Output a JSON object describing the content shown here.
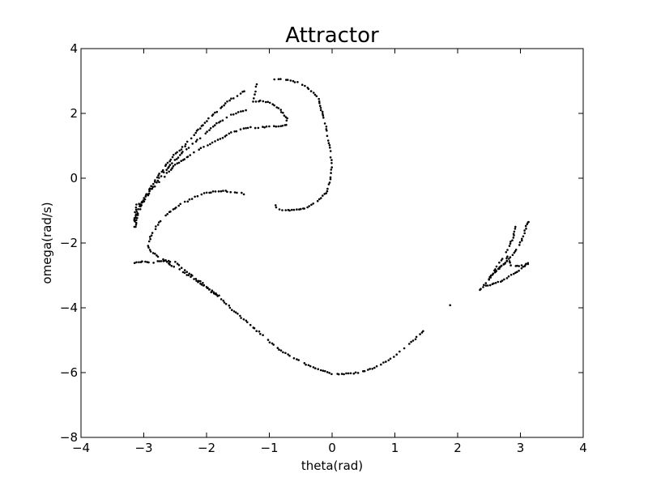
{
  "chart_data": {
    "type": "scatter",
    "title": "Attractor",
    "xlabel": "theta(rad)",
    "ylabel": "omega(rad/s)",
    "xlim": [
      -4,
      4
    ],
    "ylim": [
      -8,
      4
    ],
    "xticks": [
      -4,
      -3,
      -2,
      -1,
      0,
      1,
      2,
      3,
      4
    ],
    "yticks": [
      -8,
      -6,
      -4,
      -2,
      0,
      2,
      4
    ],
    "xtick_labels": [
      "−4",
      "−3",
      "−2",
      "−1",
      "0",
      "1",
      "2",
      "3",
      "4"
    ],
    "ytick_labels": [
      "−8",
      "−6",
      "−4",
      "−2",
      "0",
      "2",
      "4"
    ],
    "grid": false,
    "legend": "none",
    "marker_color": "#000000",
    "curves": [
      [
        [
          -0.9,
          -0.85
        ],
        [
          -0.88,
          -0.95
        ],
        [
          -0.8,
          -0.98
        ],
        [
          -0.7,
          -0.98
        ],
        [
          -0.6,
          -0.98
        ],
        [
          -0.5,
          -0.96
        ],
        [
          -0.4,
          -0.9
        ],
        [
          -0.3,
          -0.8
        ],
        [
          -0.2,
          -0.65
        ],
        [
          -0.1,
          -0.45
        ],
        [
          -0.05,
          -0.2
        ],
        [
          -0.02,
          0.1
        ],
        [
          -0.01,
          0.4
        ],
        [
          -0.02,
          0.7
        ],
        [
          -0.04,
          1.0
        ],
        [
          -0.07,
          1.3
        ],
        [
          -0.1,
          1.6
        ],
        [
          -0.13,
          1.85
        ],
        [
          -0.16,
          2.05
        ],
        [
          -0.19,
          2.25
        ],
        [
          -0.22,
          2.45
        ],
        [
          -0.3,
          2.65
        ],
        [
          -0.4,
          2.8
        ],
        [
          -0.55,
          2.95
        ],
        [
          -0.7,
          3.03
        ],
        [
          -0.82,
          3.05
        ],
        [
          -0.92,
          3.05
        ]
      ],
      [
        [
          -0.85,
          1.6
        ],
        [
          -0.75,
          1.62
        ],
        [
          -0.72,
          1.7
        ],
        [
          -0.72,
          1.85
        ],
        [
          -0.78,
          2.0
        ],
        [
          -0.85,
          2.15
        ],
        [
          -0.95,
          2.3
        ],
        [
          -1.1,
          2.38
        ],
        [
          -1.25,
          2.38
        ],
        [
          -1.2,
          2.9
        ]
      ],
      [
        [
          -0.85,
          1.6
        ],
        [
          -1.0,
          1.58
        ],
        [
          -1.15,
          1.57
        ],
        [
          -1.3,
          1.56
        ],
        [
          -1.45,
          1.5
        ],
        [
          -1.6,
          1.4
        ],
        [
          -1.75,
          1.25
        ],
        [
          -1.9,
          1.1
        ],
        [
          -2.05,
          0.95
        ],
        [
          -2.2,
          0.8
        ],
        [
          -2.35,
          0.6
        ],
        [
          -2.5,
          0.4
        ],
        [
          -2.6,
          0.2
        ],
        [
          -2.7,
          0.0
        ],
        [
          -2.8,
          -0.2
        ],
        [
          -2.9,
          -0.4
        ],
        [
          -3.0,
          -0.7
        ],
        [
          -3.08,
          -1.0
        ],
        [
          -3.12,
          -1.3
        ],
        [
          -3.13,
          -1.5
        ]
      ],
      [
        [
          -1.35,
          2.1
        ],
        [
          -1.45,
          2.05
        ],
        [
          -1.6,
          1.95
        ],
        [
          -1.75,
          1.8
        ],
        [
          -1.9,
          1.6
        ],
        [
          -2.05,
          1.35
        ],
        [
          -2.2,
          1.1
        ],
        [
          -2.35,
          0.85
        ],
        [
          -2.5,
          0.55
        ],
        [
          -2.62,
          0.3
        ],
        [
          -2.75,
          0.0
        ],
        [
          -2.85,
          -0.25
        ],
        [
          -2.95,
          -0.5
        ],
        [
          -3.05,
          -0.8
        ],
        [
          -3.12,
          -1.1
        ],
        [
          -3.15,
          -1.3
        ]
      ],
      [
        [
          -1.4,
          2.7
        ],
        [
          -1.5,
          2.55
        ],
        [
          -1.6,
          2.45
        ],
        [
          -1.7,
          2.3
        ],
        [
          -1.8,
          2.1
        ],
        [
          -1.92,
          1.95
        ],
        [
          -2.05,
          1.65
        ],
        [
          -2.2,
          1.35
        ],
        [
          -2.35,
          1.0
        ],
        [
          -2.55,
          0.65
        ],
        [
          -2.7,
          0.25
        ],
        [
          -2.9,
          -0.3
        ],
        [
          -3.05,
          -0.8
        ],
        [
          -3.12,
          -0.75
        ],
        [
          -3.15,
          -1.5
        ]
      ],
      [
        [
          -1.4,
          -0.48
        ],
        [
          -1.55,
          -0.42
        ],
        [
          -1.7,
          -0.4
        ],
        [
          -1.85,
          -0.4
        ],
        [
          -2.0,
          -0.45
        ],
        [
          -2.15,
          -0.55
        ],
        [
          -2.3,
          -0.7
        ],
        [
          -2.45,
          -0.85
        ],
        [
          -2.6,
          -1.05
        ],
        [
          -2.7,
          -1.25
        ],
        [
          -2.8,
          -1.5
        ],
        [
          -2.88,
          -1.75
        ],
        [
          -2.93,
          -2.0
        ],
        [
          -2.93,
          -2.15
        ],
        [
          -2.88,
          -2.25
        ],
        [
          -2.8,
          -2.4
        ],
        [
          -2.7,
          -2.5
        ],
        [
          -2.55,
          -2.7
        ],
        [
          -2.4,
          -2.85
        ],
        [
          -2.25,
          -3.05
        ],
        [
          -2.1,
          -3.25
        ],
        [
          -1.95,
          -3.45
        ],
        [
          -1.8,
          -3.7
        ],
        [
          -1.65,
          -3.95
        ],
        [
          -1.5,
          -4.2
        ],
        [
          -1.35,
          -4.45
        ],
        [
          -1.2,
          -4.7
        ],
        [
          -1.05,
          -4.95
        ],
        [
          -0.9,
          -5.2
        ],
        [
          -0.75,
          -5.4
        ],
        [
          -0.6,
          -5.55
        ],
        [
          -0.45,
          -5.7
        ],
        [
          -0.3,
          -5.85
        ],
        [
          -0.15,
          -5.95
        ],
        [
          0.0,
          -6.03
        ],
        [
          0.15,
          -6.05
        ],
        [
          0.3,
          -6.03
        ],
        [
          0.45,
          -6.0
        ],
        [
          0.6,
          -5.9
        ],
        [
          0.75,
          -5.78
        ],
        [
          0.9,
          -5.62
        ],
        [
          1.05,
          -5.42
        ],
        [
          1.2,
          -5.15
        ],
        [
          1.35,
          -4.9
        ],
        [
          1.45,
          -4.72
        ]
      ],
      [
        [
          -3.15,
          -2.6
        ],
        [
          -3.05,
          -2.58
        ],
        [
          -2.95,
          -2.58
        ],
        [
          -2.85,
          -2.6
        ],
        [
          -2.75,
          -2.55
        ],
        [
          -2.65,
          -2.55
        ],
        [
          -2.5,
          -2.6
        ],
        [
          -2.4,
          -2.75
        ],
        [
          -2.25,
          -2.98
        ],
        [
          -2.1,
          -3.2
        ],
        [
          -1.95,
          -3.42
        ],
        [
          -1.8,
          -3.62
        ]
      ],
      [
        [
          1.88,
          -3.92
        ]
      ],
      [
        [
          2.35,
          -3.45
        ],
        [
          2.45,
          -3.25
        ],
        [
          2.52,
          -3.05
        ],
        [
          2.6,
          -2.8
        ],
        [
          2.67,
          -2.6
        ],
        [
          2.75,
          -2.35
        ],
        [
          2.82,
          -2.1
        ],
        [
          2.88,
          -1.85
        ],
        [
          2.92,
          -1.5
        ]
      ],
      [
        [
          2.45,
          -3.3
        ],
        [
          2.55,
          -3.28
        ],
        [
          2.65,
          -3.22
        ],
        [
          2.75,
          -3.12
        ],
        [
          2.85,
          -3.0
        ],
        [
          2.95,
          -2.88
        ],
        [
          3.05,
          -2.75
        ],
        [
          3.12,
          -2.62
        ]
      ],
      [
        [
          2.5,
          -3.15
        ],
        [
          2.55,
          -3.0
        ],
        [
          2.62,
          -2.85
        ],
        [
          2.7,
          -2.7
        ],
        [
          2.78,
          -2.55
        ],
        [
          2.8,
          -2.4
        ],
        [
          2.82,
          -2.55
        ],
        [
          2.85,
          -2.7
        ],
        [
          2.95,
          -2.72
        ],
        [
          3.05,
          -2.7
        ],
        [
          3.12,
          -2.65
        ]
      ],
      [
        [
          2.6,
          -2.9
        ],
        [
          2.68,
          -2.75
        ],
        [
          2.76,
          -2.62
        ],
        [
          2.84,
          -2.45
        ],
        [
          2.92,
          -2.25
        ],
        [
          3.0,
          -2.0
        ],
        [
          3.05,
          -1.8
        ],
        [
          3.08,
          -1.55
        ],
        [
          3.1,
          -1.4
        ],
        [
          3.13,
          -1.35
        ]
      ]
    ]
  }
}
